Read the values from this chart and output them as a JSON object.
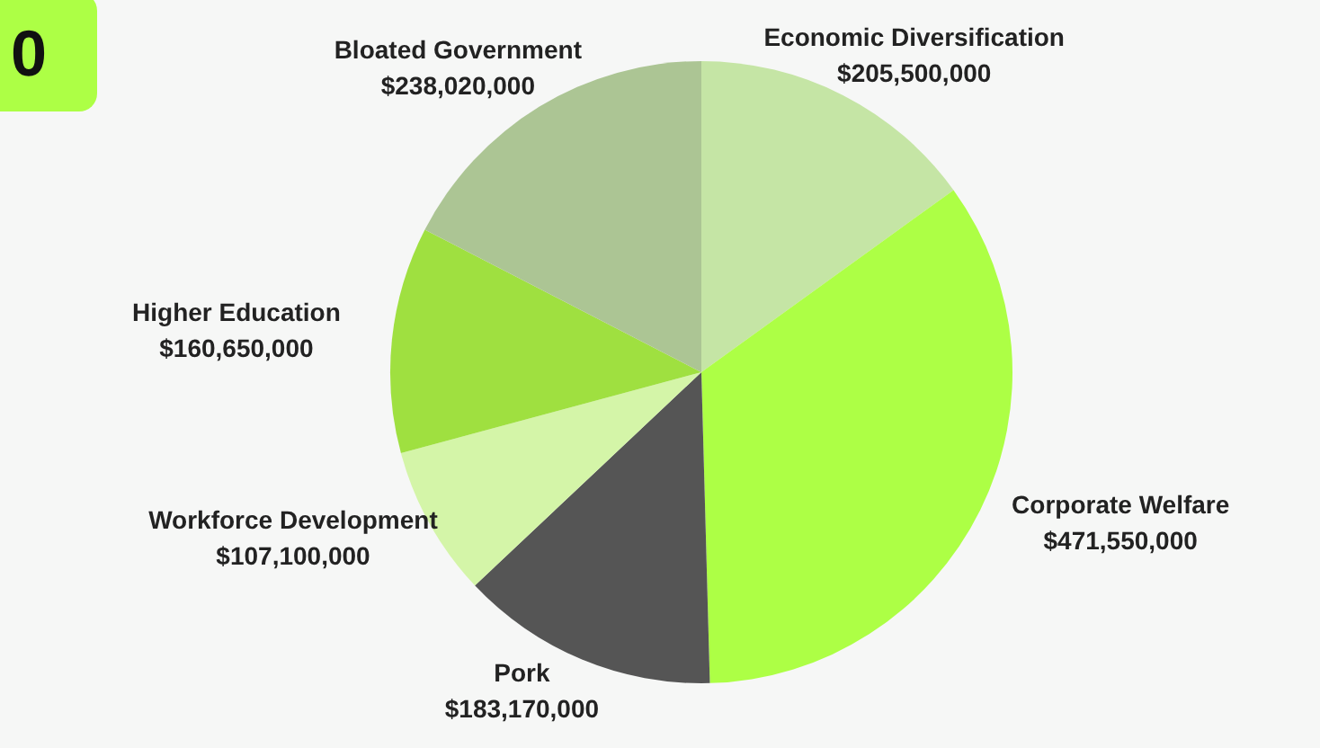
{
  "chart_data": {
    "type": "pie",
    "categories": [
      "Economic Diversification",
      "Corporate Welfare",
      "Pork",
      "Workforce Development",
      "Higher Education",
      "Bloated Government"
    ],
    "values": [
      205500000,
      471550000,
      183170000,
      107100000,
      160650000,
      238020000
    ],
    "value_labels": [
      "$205,500,000",
      "$471,550,000",
      "$183,170,000",
      "$107,100,000",
      "$160,650,000",
      "$238,020,000"
    ],
    "colors": [
      "#c5e5a5",
      "#adff45",
      "#555555",
      "#d4f5a8",
      "#9fe040",
      "#acc594"
    ],
    "annotations": [
      "0"
    ],
    "legend": false
  }
}
